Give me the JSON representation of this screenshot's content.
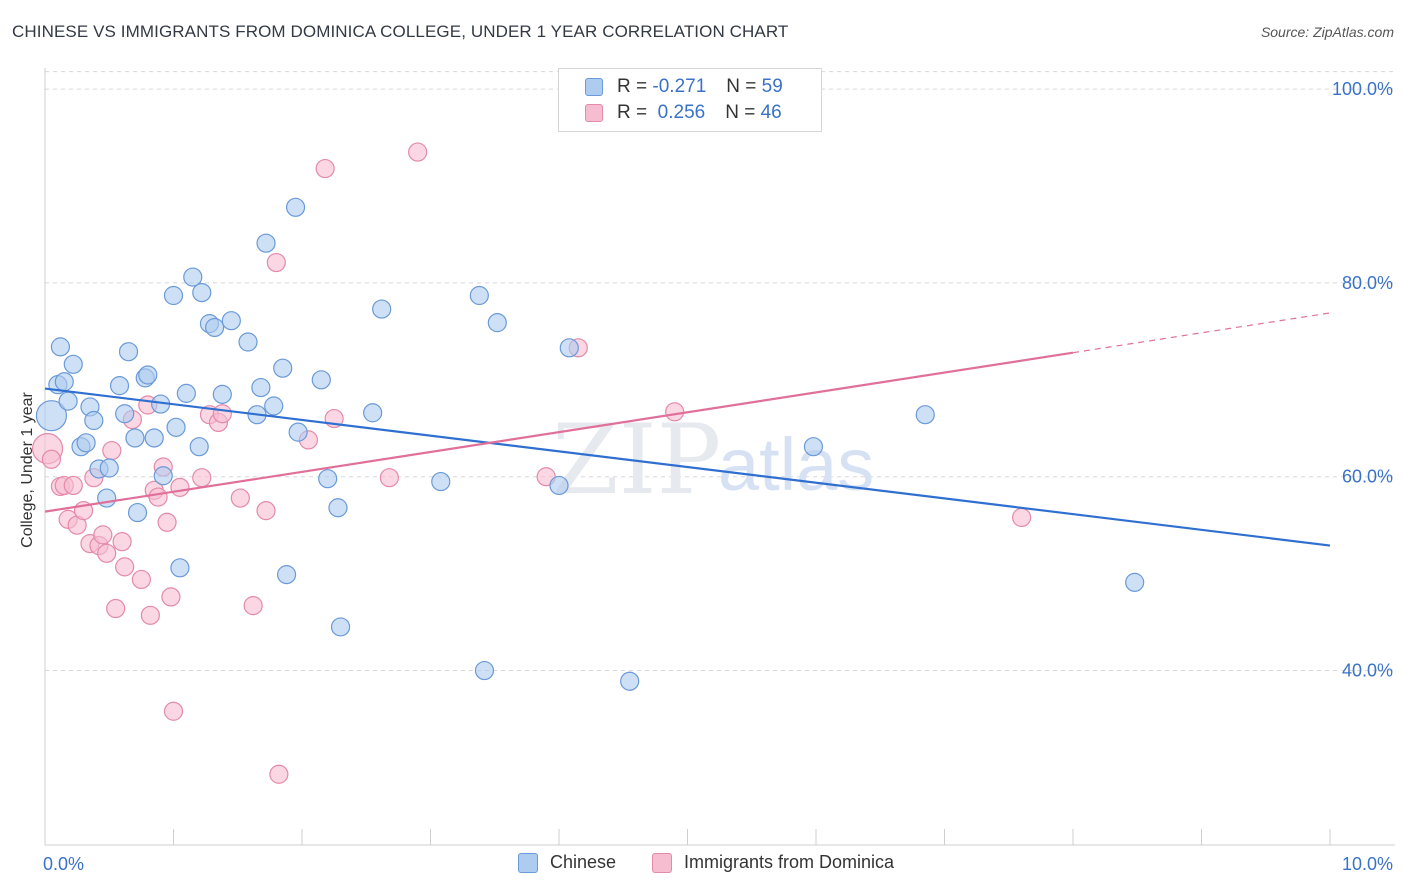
{
  "title": "CHINESE VS IMMIGRANTS FROM DOMINICA COLLEGE, UNDER 1 YEAR CORRELATION CHART",
  "source": "Source: ZipAtlas.com",
  "watermark": {
    "zip": "ZIP",
    "atlas": "atlas"
  },
  "legend": {
    "r_label": "R =",
    "n_label": "N =",
    "series": [
      {
        "name": "Chinese",
        "r": "-0.271",
        "n": "59"
      },
      {
        "name": "Immigrants from Dominica",
        "r": "0.256",
        "n": "46"
      }
    ]
  },
  "colors": {
    "chinese_fill": "#aecbf0",
    "chinese_stroke": "#6a9ad8",
    "chinese_line": "#2f6fd0",
    "dominica_fill": "#f6bcd0",
    "dominica_stroke": "#e48aab",
    "dominica_line": "#e0709a",
    "tick_label": "#3a72c8",
    "grid": "#d8d8d8"
  },
  "chart_data": {
    "type": "scatter",
    "title": "CHINESE VS IMMIGRANTS FROM DOMINICA COLLEGE, UNDER 1 YEAR CORRELATION CHART",
    "xlabel": "",
    "ylabel": "College, Under 1 year",
    "xlim": [
      0,
      10
    ],
    "ylim": [
      22,
      103
    ],
    "x_tick_labels": [
      "0.0%",
      "10.0%"
    ],
    "y_ticks": [
      40,
      60,
      80,
      100
    ],
    "y_tick_labels": [
      "40.0%",
      "60.0%",
      "80.0%",
      "100.0%"
    ],
    "grid": true,
    "legend_position": "top-center",
    "series": [
      {
        "name": "Chinese",
        "points": [
          [
            0.05,
            66.3
          ],
          [
            0.1,
            69.5
          ],
          [
            0.12,
            73.4
          ],
          [
            0.15,
            69.8
          ],
          [
            0.18,
            67.8
          ],
          [
            0.22,
            71.6
          ],
          [
            0.28,
            63.1
          ],
          [
            0.32,
            63.5
          ],
          [
            0.35,
            67.2
          ],
          [
            0.38,
            65.8
          ],
          [
            0.42,
            60.8
          ],
          [
            0.48,
            57.8
          ],
          [
            0.5,
            60.9
          ],
          [
            0.58,
            69.4
          ],
          [
            0.62,
            66.5
          ],
          [
            0.65,
            72.9
          ],
          [
            0.7,
            64.0
          ],
          [
            0.72,
            56.3
          ],
          [
            0.78,
            70.2
          ],
          [
            0.8,
            70.5
          ],
          [
            0.85,
            64.0
          ],
          [
            0.9,
            67.5
          ],
          [
            0.92,
            60.1
          ],
          [
            1.0,
            78.7
          ],
          [
            1.02,
            65.1
          ],
          [
            1.05,
            50.6
          ],
          [
            1.1,
            68.6
          ],
          [
            1.15,
            80.6
          ],
          [
            1.2,
            63.1
          ],
          [
            1.22,
            79.0
          ],
          [
            1.28,
            75.8
          ],
          [
            1.32,
            75.4
          ],
          [
            1.38,
            68.5
          ],
          [
            1.45,
            76.1
          ],
          [
            1.58,
            73.9
          ],
          [
            1.65,
            66.4
          ],
          [
            1.68,
            69.2
          ],
          [
            1.72,
            84.1
          ],
          [
            1.78,
            67.3
          ],
          [
            1.85,
            71.2
          ],
          [
            1.88,
            49.9
          ],
          [
            1.95,
            87.8
          ],
          [
            1.97,
            64.6
          ],
          [
            2.15,
            70.0
          ],
          [
            2.2,
            59.8
          ],
          [
            2.28,
            56.8
          ],
          [
            2.3,
            44.5
          ],
          [
            2.55,
            66.6
          ],
          [
            2.62,
            77.3
          ],
          [
            3.08,
            59.5
          ],
          [
            3.38,
            78.7
          ],
          [
            3.42,
            40.0
          ],
          [
            3.52,
            75.9
          ],
          [
            4.0,
            59.1
          ],
          [
            4.08,
            73.3
          ],
          [
            4.55,
            38.9
          ],
          [
            5.98,
            63.1
          ],
          [
            6.85,
            66.4
          ],
          [
            8.48,
            49.1
          ]
        ]
      },
      {
        "name": "Immigrants from Dominica",
        "points": [
          [
            0.02,
            62.9
          ],
          [
            0.05,
            61.8
          ],
          [
            0.12,
            59.0
          ],
          [
            0.15,
            59.1
          ],
          [
            0.18,
            55.6
          ],
          [
            0.22,
            59.1
          ],
          [
            0.25,
            55.0
          ],
          [
            0.3,
            56.5
          ],
          [
            0.35,
            53.1
          ],
          [
            0.38,
            59.9
          ],
          [
            0.42,
            52.9
          ],
          [
            0.45,
            54.0
          ],
          [
            0.48,
            52.1
          ],
          [
            0.52,
            62.7
          ],
          [
            0.55,
            46.4
          ],
          [
            0.6,
            53.3
          ],
          [
            0.62,
            50.7
          ],
          [
            0.68,
            65.9
          ],
          [
            0.75,
            49.4
          ],
          [
            0.8,
            67.4
          ],
          [
            0.82,
            45.7
          ],
          [
            0.85,
            58.6
          ],
          [
            0.88,
            57.9
          ],
          [
            0.92,
            61.0
          ],
          [
            0.95,
            55.3
          ],
          [
            0.98,
            47.6
          ],
          [
            1.0,
            35.8
          ],
          [
            1.05,
            58.9
          ],
          [
            1.22,
            59.9
          ],
          [
            1.28,
            66.4
          ],
          [
            1.35,
            65.6
          ],
          [
            1.38,
            66.5
          ],
          [
            1.52,
            57.8
          ],
          [
            1.62,
            46.7
          ],
          [
            1.72,
            56.5
          ],
          [
            1.8,
            82.1
          ],
          [
            1.82,
            29.3
          ],
          [
            2.05,
            63.8
          ],
          [
            2.18,
            91.8
          ],
          [
            2.25,
            66.0
          ],
          [
            2.68,
            59.9
          ],
          [
            2.9,
            93.5
          ],
          [
            3.9,
            60.0
          ],
          [
            4.15,
            73.3
          ],
          [
            4.9,
            66.7
          ],
          [
            7.6,
            55.8
          ]
        ]
      }
    ],
    "trend_lines": [
      {
        "name": "Chinese",
        "x": [
          0.0,
          10.0
        ],
        "y": [
          69.1,
          52.9
        ]
      },
      {
        "name": "Immigrants from Dominica",
        "x": [
          0.0,
          8.0
        ],
        "y": [
          56.4,
          72.8
        ],
        "dashed_to": [
          10.0,
          76.9
        ]
      }
    ]
  }
}
